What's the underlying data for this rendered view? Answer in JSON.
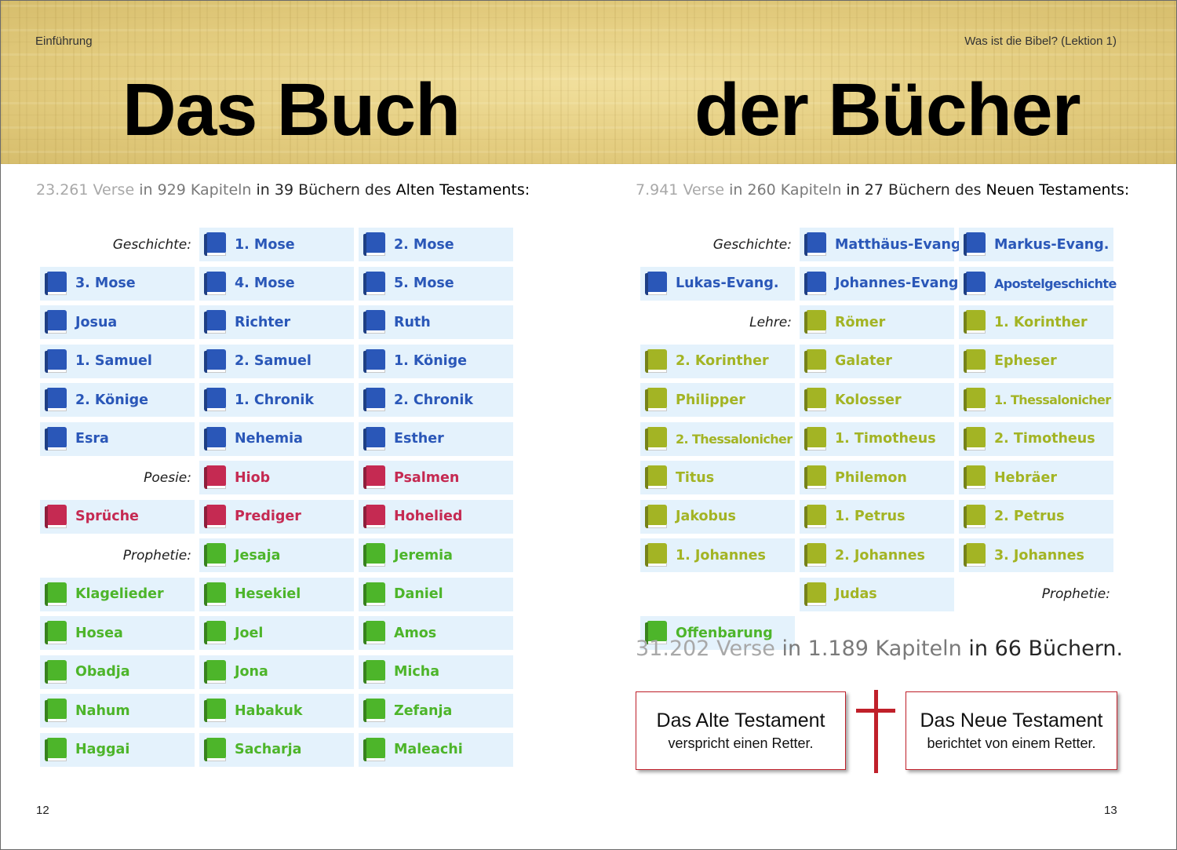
{
  "colors": {
    "geschichte": "#2a57b8",
    "poesie": "#c52a52",
    "prophetie_at": "#4db52a",
    "lehre": "#a3b424",
    "prophetie_nt": "#4db52a",
    "cross": "#c0202a"
  },
  "header": {
    "left": "Einführung",
    "right": "Was ist die Bibel? (Lektion 1)"
  },
  "title": {
    "left": "Das Buch",
    "right": "der Bücher"
  },
  "stats_at": {
    "verses_num": "23.261",
    "verses_word": "Verse",
    "in1": "in",
    "chapters": "929 Kapiteln",
    "in2": "in",
    "books": "39 Büchern",
    "des": "des",
    "testament": "Alten Testaments:"
  },
  "stats_nt": {
    "verses_num": "7.941",
    "verses_word": "Verse",
    "in1": "in",
    "chapters": "260 Kapiteln",
    "in2": "in",
    "books": "27 Büchern",
    "des": "des",
    "testament": "Neuen Testaments:"
  },
  "at_cells": [
    {
      "type": "cat",
      "label": "Geschichte:"
    },
    {
      "type": "book",
      "name": "1. Mose",
      "group": "geschichte"
    },
    {
      "type": "book",
      "name": "2. Mose",
      "group": "geschichte"
    },
    {
      "type": "book",
      "name": "3. Mose",
      "group": "geschichte"
    },
    {
      "type": "book",
      "name": "4. Mose",
      "group": "geschichte"
    },
    {
      "type": "book",
      "name": "5. Mose",
      "group": "geschichte"
    },
    {
      "type": "book",
      "name": "Josua",
      "group": "geschichte"
    },
    {
      "type": "book",
      "name": "Richter",
      "group": "geschichte"
    },
    {
      "type": "book",
      "name": "Ruth",
      "group": "geschichte"
    },
    {
      "type": "book",
      "name": "1. Samuel",
      "group": "geschichte"
    },
    {
      "type": "book",
      "name": "2. Samuel",
      "group": "geschichte"
    },
    {
      "type": "book",
      "name": "1. Könige",
      "group": "geschichte"
    },
    {
      "type": "book",
      "name": "2. Könige",
      "group": "geschichte"
    },
    {
      "type": "book",
      "name": "1. Chronik",
      "group": "geschichte"
    },
    {
      "type": "book",
      "name": "2. Chronik",
      "group": "geschichte"
    },
    {
      "type": "book",
      "name": "Esra",
      "group": "geschichte"
    },
    {
      "type": "book",
      "name": "Nehemia",
      "group": "geschichte"
    },
    {
      "type": "book",
      "name": "Esther",
      "group": "geschichte"
    },
    {
      "type": "cat",
      "label": "Poesie:"
    },
    {
      "type": "book",
      "name": "Hiob",
      "group": "poesie"
    },
    {
      "type": "book",
      "name": "Psalmen",
      "group": "poesie"
    },
    {
      "type": "book",
      "name": "Sprüche",
      "group": "poesie"
    },
    {
      "type": "book",
      "name": "Prediger",
      "group": "poesie"
    },
    {
      "type": "book",
      "name": "Hohelied",
      "group": "poesie"
    },
    {
      "type": "cat",
      "label": "Prophetie:"
    },
    {
      "type": "book",
      "name": "Jesaja",
      "group": "prophetie_at"
    },
    {
      "type": "book",
      "name": "Jeremia",
      "group": "prophetie_at"
    },
    {
      "type": "book",
      "name": "Klagelieder",
      "group": "prophetie_at"
    },
    {
      "type": "book",
      "name": "Hesekiel",
      "group": "prophetie_at"
    },
    {
      "type": "book",
      "name": "Daniel",
      "group": "prophetie_at"
    },
    {
      "type": "book",
      "name": "Hosea",
      "group": "prophetie_at"
    },
    {
      "type": "book",
      "name": "Joel",
      "group": "prophetie_at"
    },
    {
      "type": "book",
      "name": "Amos",
      "group": "prophetie_at"
    },
    {
      "type": "book",
      "name": "Obadja",
      "group": "prophetie_at"
    },
    {
      "type": "book",
      "name": "Jona",
      "group": "prophetie_at"
    },
    {
      "type": "book",
      "name": "Micha",
      "group": "prophetie_at"
    },
    {
      "type": "book",
      "name": "Nahum",
      "group": "prophetie_at"
    },
    {
      "type": "book",
      "name": "Habakuk",
      "group": "prophetie_at"
    },
    {
      "type": "book",
      "name": "Zefanja",
      "group": "prophetie_at"
    },
    {
      "type": "book",
      "name": "Haggai",
      "group": "prophetie_at"
    },
    {
      "type": "book",
      "name": "Sacharja",
      "group": "prophetie_at"
    },
    {
      "type": "book",
      "name": "Maleachi",
      "group": "prophetie_at"
    }
  ],
  "nt_cells": [
    {
      "type": "cat",
      "label": "Geschichte:"
    },
    {
      "type": "book",
      "name": "Matthäus-Evang.",
      "group": "geschichte"
    },
    {
      "type": "book",
      "name": "Markus-Evang.",
      "group": "geschichte"
    },
    {
      "type": "book",
      "name": "Lukas-Evang.",
      "group": "geschichte"
    },
    {
      "type": "book",
      "name": "Johannes-Evang.",
      "group": "geschichte"
    },
    {
      "type": "book",
      "name": "Apostelgeschichte",
      "group": "geschichte",
      "narrow": true
    },
    {
      "type": "cat",
      "label": "Lehre:"
    },
    {
      "type": "book",
      "name": "Römer",
      "group": "lehre"
    },
    {
      "type": "book",
      "name": "1. Korinther",
      "group": "lehre"
    },
    {
      "type": "book",
      "name": "2. Korinther",
      "group": "lehre"
    },
    {
      "type": "book",
      "name": "Galater",
      "group": "lehre"
    },
    {
      "type": "book",
      "name": "Epheser",
      "group": "lehre"
    },
    {
      "type": "book",
      "name": "Philipper",
      "group": "lehre"
    },
    {
      "type": "book",
      "name": "Kolosser",
      "group": "lehre"
    },
    {
      "type": "book",
      "name": "1. Thessalonicher",
      "group": "lehre",
      "narrow": true
    },
    {
      "type": "book",
      "name": "2. Thessalonicher",
      "group": "lehre",
      "narrow": true
    },
    {
      "type": "book",
      "name": "1. Timotheus",
      "group": "lehre"
    },
    {
      "type": "book",
      "name": "2. Timotheus",
      "group": "lehre"
    },
    {
      "type": "book",
      "name": "Titus",
      "group": "lehre"
    },
    {
      "type": "book",
      "name": "Philemon",
      "group": "lehre"
    },
    {
      "type": "book",
      "name": "Hebräer",
      "group": "lehre"
    },
    {
      "type": "book",
      "name": "Jakobus",
      "group": "lehre"
    },
    {
      "type": "book",
      "name": "1. Petrus",
      "group": "lehre"
    },
    {
      "type": "book",
      "name": "2. Petrus",
      "group": "lehre"
    },
    {
      "type": "book",
      "name": "1. Johannes",
      "group": "lehre"
    },
    {
      "type": "book",
      "name": "2. Johannes",
      "group": "lehre"
    },
    {
      "type": "book",
      "name": "3. Johannes",
      "group": "lehre"
    },
    {
      "type": "book",
      "name": "Judas",
      "group": "lehre"
    },
    {
      "type": "cat",
      "label": "Prophetie:"
    },
    {
      "type": "book",
      "name": "Offenbarung",
      "group": "prophetie_nt"
    }
  ],
  "total": {
    "verses_num": "31.202",
    "verses_word": "Verse",
    "in1": "in",
    "chapters": "1.189 Kapiteln",
    "in2": "in",
    "books": "66 Büchern."
  },
  "box_at": {
    "title": "Das Alte Testament",
    "subtitle": "verspricht einen Retter."
  },
  "box_nt": {
    "title": "Das Neue Testament",
    "subtitle": "berichtet von einem Retter."
  },
  "page_numbers": {
    "left": "12",
    "right": "13"
  }
}
